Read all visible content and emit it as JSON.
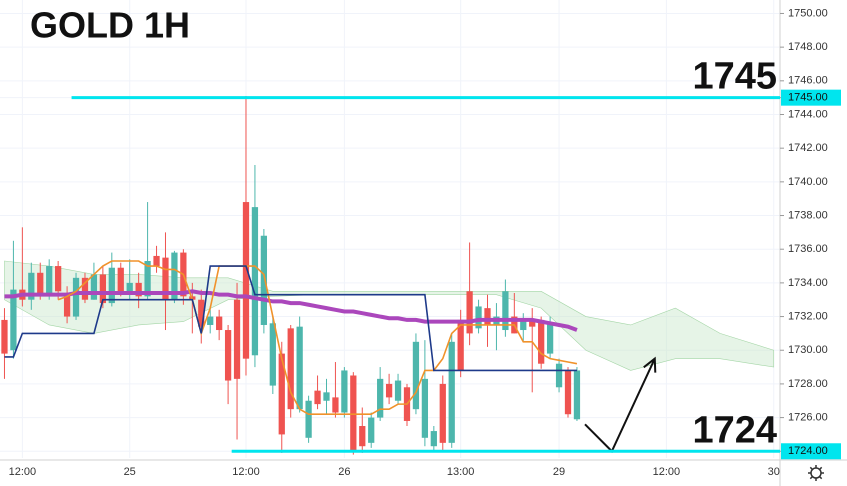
{
  "chart_data": {
    "type": "candlestick",
    "title": "GOLD 1H",
    "x": [
      0,
      1,
      2,
      3,
      4,
      5,
      6,
      7,
      8,
      9,
      10,
      11,
      12,
      13,
      14,
      15,
      16,
      17,
      18,
      19,
      20,
      21,
      22,
      23,
      24,
      25,
      26,
      27,
      28,
      29,
      30,
      31,
      32,
      33,
      34,
      35,
      36,
      37,
      38,
      39,
      40,
      41,
      42,
      43,
      44,
      45,
      46,
      47,
      48,
      49,
      50,
      51,
      52,
      53,
      54,
      55,
      56,
      57,
      58,
      59,
      60,
      61,
      62,
      63,
      64
    ],
    "open": [
      1731.8,
      1730.0,
      1733.6,
      1733.0,
      1734.6,
      1733.3,
      1735.0,
      1733.4,
      1732.0,
      1734.3,
      1733.0,
      1734.5,
      1732.8,
      1734.9,
      1733.5,
      1734.0,
      1733.2,
      1735.6,
      1735.5,
      1733.0,
      1735.8,
      1733.2,
      1733.0,
      1731.5,
      1732.0,
      1731.2,
      1733.0,
      1738.8,
      1729.7,
      1731.5,
      1727.9,
      1729.8,
      1731.3,
      1726.5,
      1724.8,
      1727.6,
      1727.0,
      1727.2,
      1726.3,
      1728.5,
      1725.5,
      1724.5,
      1726.0,
      1728.0,
      1727.0,
      1727.8,
      1726.5,
      1724.8,
      1724.3,
      1728.0,
      1724.5,
      1731.8,
      1733.5,
      1731.3,
      1732.5,
      1731.5,
      1731.2,
      1732.0,
      1731.2,
      1731.8,
      1731.8,
      1729.8,
      1727.8,
      1728.8,
      1725.9
    ],
    "close": [
      1729.8,
      1733.6,
      1733.0,
      1734.6,
      1733.4,
      1735.0,
      1733.5,
      1732.0,
      1734.3,
      1733.0,
      1734.5,
      1732.8,
      1734.9,
      1733.5,
      1734.0,
      1733.2,
      1735.3,
      1735.0,
      1733.0,
      1735.8,
      1733.2,
      1733.0,
      1731.4,
      1732.0,
      1731.2,
      1728.2,
      1728.3,
      1729.5,
      1738.5,
      1736.8,
      1731.6,
      1725.0,
      1726.5,
      1731.4,
      1727.0,
      1726.8,
      1727.5,
      1726.3,
      1728.8,
      1724.0,
      1724.3,
      1726.0,
      1728.3,
      1727.2,
      1728.2,
      1725.8,
      1730.5,
      1728.3,
      1725.2,
      1724.5,
      1730.5,
      1728.8,
      1731.0,
      1732.6,
      1731.5,
      1732.0,
      1733.5,
      1731.0,
      1731.8,
      1731.4,
      1729.2,
      1731.6,
      1729.2,
      1726.2,
      1728.8
    ],
    "high": [
      1732.5,
      1736.5,
      1737.3,
      1735.2,
      1735.2,
      1735.4,
      1735.3,
      1733.8,
      1734.6,
      1734.6,
      1735.2,
      1735.0,
      1735.8,
      1735.2,
      1735.4,
      1734.6,
      1738.8,
      1736.2,
      1737.0,
      1735.9,
      1736.0,
      1734.0,
      1733.6,
      1732.6,
      1732.4,
      1731.5,
      1734.0,
      1745.1,
      1741.0,
      1737.2,
      1732.0,
      1730.5,
      1731.5,
      1732.0,
      1727.3,
      1728.5,
      1728.3,
      1729.3,
      1729.0,
      1728.7,
      1726.6,
      1726.3,
      1729.0,
      1728.6,
      1728.6,
      1728.0,
      1731.0,
      1730.6,
      1725.5,
      1728.5,
      1731.0,
      1732.4,
      1736.4,
      1733.0,
      1733.3,
      1732.8,
      1734.2,
      1733.4,
      1732.2,
      1732.5,
      1732.0,
      1732.0,
      1729.5,
      1729.0,
      1729.0
    ],
    "low": [
      1728.3,
      1729.5,
      1732.6,
      1732.4,
      1733.0,
      1733.0,
      1733.0,
      1731.6,
      1731.8,
      1732.8,
      1733.0,
      1732.5,
      1732.6,
      1733.2,
      1733.0,
      1732.5,
      1733.0,
      1734.6,
      1731.2,
      1732.8,
      1732.7,
      1731.0,
      1730.4,
      1731.0,
      1730.6,
      1726.8,
      1724.7,
      1728.5,
      1729.0,
      1731.0,
      1727.4,
      1723.9,
      1726.0,
      1726.3,
      1724.5,
      1726.5,
      1726.2,
      1726.0,
      1726.0,
      1723.8,
      1723.9,
      1724.2,
      1725.8,
      1726.8,
      1726.8,
      1725.5,
      1726.2,
      1724.3,
      1724.0,
      1724.0,
      1724.2,
      1728.4,
      1730.3,
      1731.0,
      1730.2,
      1730.0,
      1730.8,
      1731.0,
      1730.5,
      1727.5,
      1728.9,
      1729.5,
      1727.5,
      1726.0,
      1725.8
    ],
    "up_color": "#4db6ac",
    "down_color": "#ef5350",
    "series": [
      {
        "color": "#ab47bc",
        "values": [
          1733.2,
          1733.2,
          1733.3,
          1733.3,
          1733.3,
          1733.3,
          1733.3,
          1733.3,
          1733.4,
          1733.4,
          1733.4,
          1733.4,
          1733.4,
          1733.4,
          1733.4,
          1733.4,
          1733.4,
          1733.4,
          1733.4,
          1733.4,
          1733.4,
          1733.5,
          1733.4,
          1733.4,
          1733.3,
          1733.3,
          1733.2,
          1733.2,
          1733.1,
          1733.0,
          1732.9,
          1732.9,
          1732.8,
          1732.8,
          1732.7,
          1732.6,
          1732.5,
          1732.4,
          1732.3,
          1732.3,
          1732.2,
          1732.1,
          1732.0,
          1731.9,
          1731.9,
          1731.8,
          1731.8,
          1731.7,
          1731.7,
          1731.7,
          1731.7,
          1731.7,
          1731.7,
          1731.8,
          1731.8,
          1731.8,
          1731.8,
          1731.8,
          1731.8,
          1731.8,
          1731.7,
          1731.6,
          1731.5,
          1731.4,
          1731.2
        ]
      },
      {
        "color": "#f0922b",
        "values": [
          null,
          null,
          null,
          null,
          null,
          null,
          1733.0,
          1733.2,
          1733.5,
          1734.0,
          1734.5,
          1735.0,
          1735.3,
          1735.3,
          1735.3,
          1735.3,
          1735.0,
          1735.0,
          1734.8,
          1734.8,
          1734.5,
          1733.0,
          1731.0,
          1732.5,
          1735.0,
          1735.0,
          1735.0,
          1735.0,
          1735.0,
          1734.5,
          1732.0,
          1729.5,
          1727.5,
          1726.5,
          1726.2,
          1726.2,
          1726.2,
          1726.2,
          1726.2,
          1726.2,
          1726.2,
          1726.2,
          1726.5,
          1726.5,
          1726.8,
          1726.8,
          1727.5,
          1728.8,
          1728.8,
          1729.5,
          1731.0,
          1731.5,
          1731.5,
          1731.5,
          1731.5,
          1731.5,
          1731.5,
          1731.5,
          1730.5,
          1730.5,
          1729.8,
          1729.5,
          1729.4,
          1729.3,
          1729.2
        ]
      },
      {
        "color": "#1e3a8a",
        "values": [
          1729.6,
          1729.6,
          1731.0,
          1731.0,
          1731.0,
          1731.0,
          1731.0,
          1731.0,
          1731.0,
          1731.0,
          1731.0,
          1733.0,
          1733.0,
          1733.0,
          1733.0,
          1733.0,
          1733.0,
          1733.0,
          1733.0,
          1733.0,
          1733.0,
          1733.0,
          1731.0,
          1735.0,
          1735.0,
          1735.0,
          1735.0,
          1735.0,
          1733.3,
          1733.3,
          1733.3,
          1733.3,
          1733.3,
          1733.3,
          1733.3,
          1733.3,
          1733.3,
          1733.3,
          1733.3,
          1733.3,
          1733.3,
          1733.3,
          1733.3,
          1733.3,
          1733.3,
          1733.3,
          1733.3,
          1733.3,
          1728.8,
          1728.8,
          1728.8,
          1728.8,
          1728.8,
          1728.8,
          1728.8,
          1728.8,
          1728.8,
          1728.8,
          1728.8,
          1728.8,
          1728.8,
          1728.8,
          1728.8,
          1728.8,
          1728.8
        ]
      }
    ],
    "cloud": {
      "color": "#c8e6c9",
      "x": [
        0,
        5,
        10,
        15,
        20,
        25,
        30,
        35,
        40,
        45,
        50,
        55,
        60,
        65,
        70,
        75,
        80,
        86
      ],
      "upper": [
        1735.3,
        1735.0,
        1734.5,
        1734.5,
        1734.3,
        1734.3,
        1733.5,
        1733.5,
        1733.5,
        1733.5,
        1733.5,
        1733.5,
        1733.5,
        1732.0,
        1731.5,
        1732.5,
        1731.0,
        1730.0
      ],
      "lower": [
        1733.0,
        1731.5,
        1731.0,
        1731.5,
        1731.7,
        1733.0,
        1733.2,
        1733.3,
        1733.3,
        1733.3,
        1733.3,
        1733.3,
        1732.5,
        1730.0,
        1728.8,
        1729.5,
        1729.5,
        1729.0
      ]
    },
    "levels": [
      {
        "value": 1745,
        "label": "1745",
        "axis_label": "1745.00",
        "from": 7.5,
        "color": "#00e5ee"
      },
      {
        "value": 1724,
        "label": "1724",
        "axis_label": "1724.00",
        "from": 25.4,
        "color": "#00e5ee"
      }
    ],
    "projection": {
      "x": [
        64.9,
        67.9,
        72.7
      ],
      "y": [
        1725.6,
        1724.0,
        1729.5
      ]
    },
    "xlim": [
      -0.5,
      86.7
    ],
    "xticks": [
      {
        "value": 2,
        "label": "12:00"
      },
      {
        "value": 14,
        "label": "25"
      },
      {
        "value": 27,
        "label": "12:00"
      },
      {
        "value": 38,
        "label": "26"
      },
      {
        "value": 51,
        "label": "13:00"
      },
      {
        "value": 62,
        "label": "29"
      },
      {
        "value": 74,
        "label": "12:00"
      },
      {
        "value": 86,
        "label": "30"
      }
    ],
    "ylim": [
      1723.6,
      1750.8
    ],
    "yticks": [
      {
        "value": 1724,
        "label": "1724.00"
      },
      {
        "value": 1726,
        "label": "1726.00"
      },
      {
        "value": 1728,
        "label": "1728.00"
      },
      {
        "value": 1730,
        "label": "1730.00"
      },
      {
        "value": 1732,
        "label": "1732.00"
      },
      {
        "value": 1734,
        "label": "1734.00"
      },
      {
        "value": 1736,
        "label": "1736.00"
      },
      {
        "value": 1738,
        "label": "1738.00"
      },
      {
        "value": 1740,
        "label": "1740.00"
      },
      {
        "value": 1742,
        "label": "1742.00"
      },
      {
        "value": 1744,
        "label": "1744.00"
      },
      {
        "value": 1745,
        "label": "1745.00"
      },
      {
        "value": 1746,
        "label": "1746.00"
      },
      {
        "value": 1748,
        "label": "1748.00"
      },
      {
        "value": 1750,
        "label": "1750.00"
      }
    ],
    "grid": true
  }
}
